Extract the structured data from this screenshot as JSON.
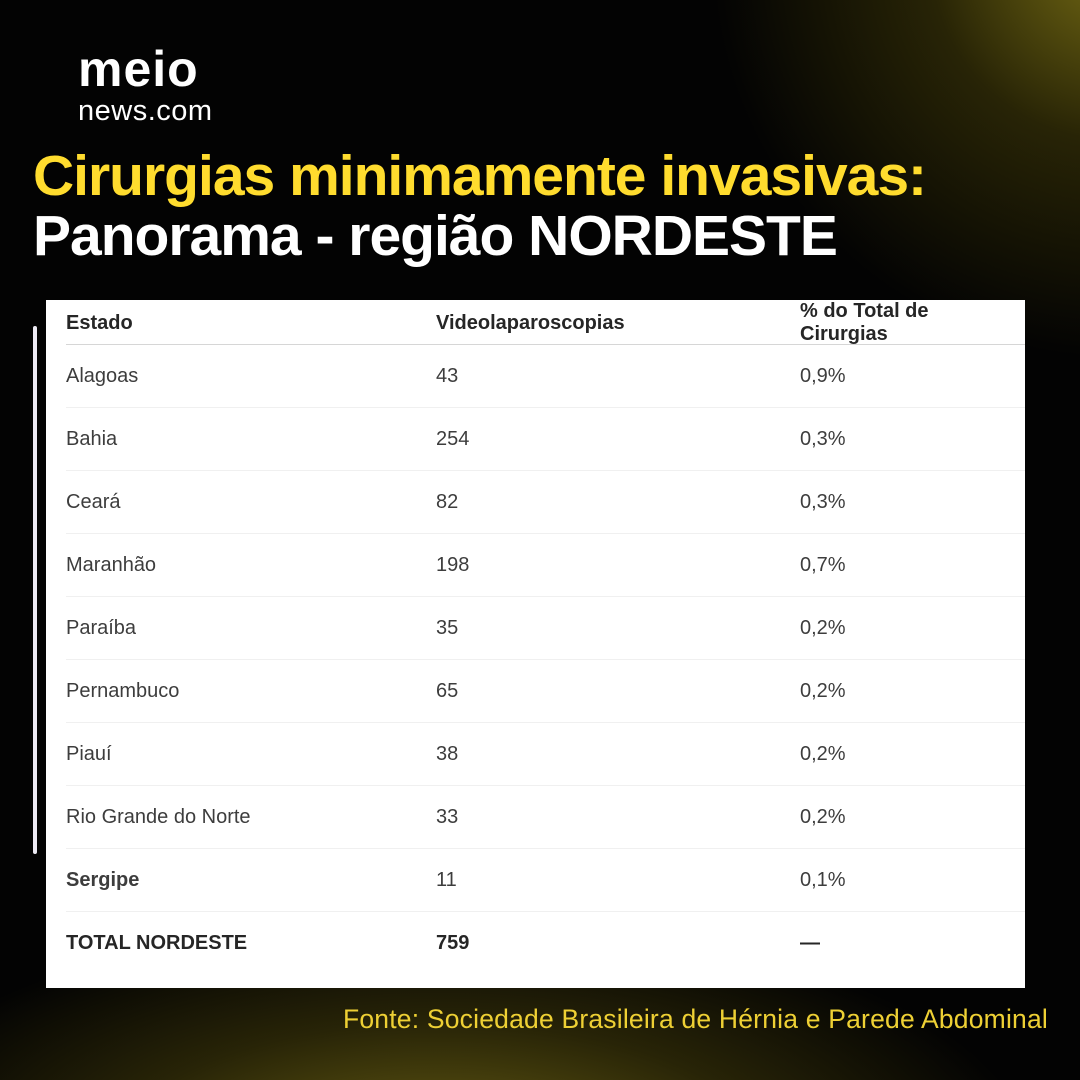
{
  "brand": {
    "logo_line1": "meio",
    "logo_line2": "news.com"
  },
  "title": {
    "line1": "Cirurgias minimamente invasivas:",
    "line2": "Panorama - região NORDESTE"
  },
  "footer": {
    "source": "Fonte: Sociedade Brasileira de Hérnia e Parede Abdominal"
  },
  "colors": {
    "title_yellow": "#ffdc2e",
    "source_yellow": "#eed034",
    "background": "#030303",
    "corner_glow": "#756b14",
    "card": "#ffffff",
    "accent_bar": "#edeaf3"
  },
  "chart_data": {
    "type": "table",
    "title": "Cirurgias minimamente invasivas: Panorama - região NORDESTE",
    "columns": [
      "Estado",
      "Videolaparoscopias",
      "% do Total de Cirurgias"
    ],
    "rows": [
      [
        "Alagoas",
        "43",
        "0,9%"
      ],
      [
        "Bahia",
        "254",
        "0,3%"
      ],
      [
        "Ceará",
        "82",
        "0,3%"
      ],
      [
        "Maranhão",
        "198",
        "0,7%"
      ],
      [
        "Paraíba",
        "35",
        "0,2%"
      ],
      [
        "Pernambuco",
        "65",
        "0,2%"
      ],
      [
        "Piauí",
        "38",
        "0,2%"
      ],
      [
        "Rio Grande do Norte",
        "33",
        "0,2%"
      ],
      [
        "Sergipe",
        "11",
        "0,1%"
      ],
      [
        "TOTAL NORDESTE",
        "759",
        "—"
      ]
    ],
    "source": "Fonte: Sociedade Brasileira de Hérnia e Parede Abdominal"
  }
}
